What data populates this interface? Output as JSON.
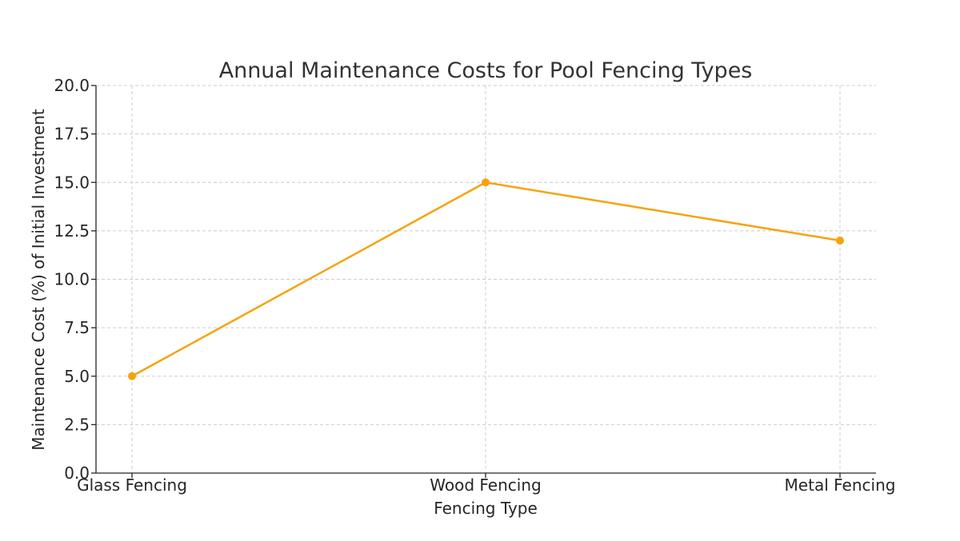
{
  "chart_data": {
    "type": "line",
    "title": "Annual Maintenance Costs for Pool Fencing Types",
    "xlabel": "Fencing Type",
    "ylabel": "Maintenance Cost (%) of Initial Investment",
    "categories": [
      "Glass Fencing",
      "Wood Fencing",
      "Metal Fencing"
    ],
    "series": [
      {
        "values": [
          5,
          15,
          12
        ],
        "color": "#f5a30a"
      }
    ],
    "ylim": [
      0,
      20
    ],
    "yticks": [
      "0.0",
      "2.5",
      "5.0",
      "7.5",
      "10.0",
      "12.5",
      "15.0",
      "17.5",
      "20.0"
    ],
    "grid": true,
    "legend": "none"
  }
}
